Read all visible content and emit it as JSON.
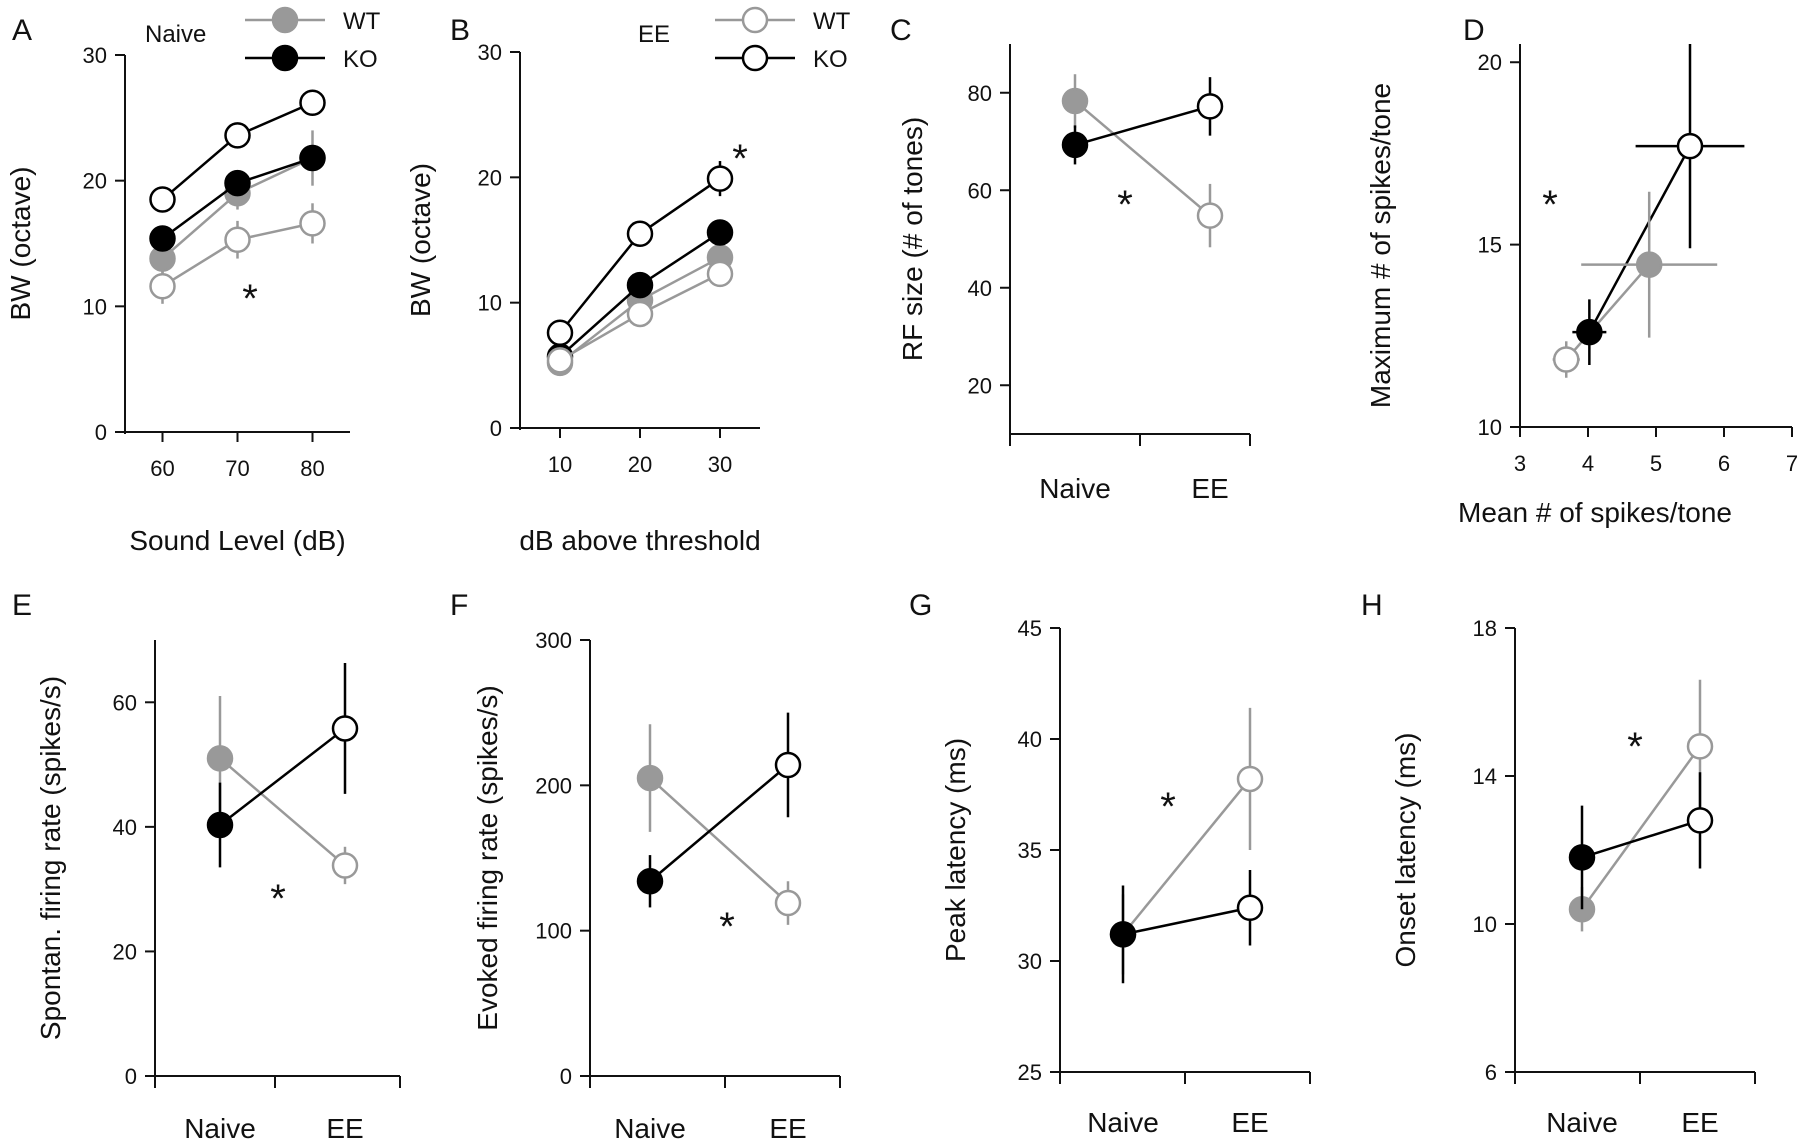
{
  "colors": {
    "wt": "#999999",
    "ko": "#000000",
    "axis": "#111111",
    "background": "#ffffff"
  },
  "chart_data": [
    {
      "panel": "A",
      "type": "line",
      "condition_label": "Naive",
      "legend": [
        {
          "label": "WT",
          "marker": "filled-gray"
        },
        {
          "label": "KO",
          "marker": "filled-black"
        }
      ],
      "xlabel": "Sound Level (dB)",
      "ylabel": "BW (octave)",
      "x": [
        60,
        70,
        80
      ],
      "xticks": [
        "60",
        "70",
        "80"
      ],
      "ylim": [
        0,
        30
      ],
      "yticks": [
        "0",
        "10",
        "20",
        "30"
      ],
      "annotation": "*",
      "series": [
        {
          "group": "Naive WT",
          "values": [
            13.8,
            19.0,
            21.8
          ],
          "err": [
            1.2,
            1.3,
            2.2
          ],
          "style": "filled-gray"
        },
        {
          "group": "Naive KO",
          "values": [
            15.4,
            19.8,
            21.8
          ],
          "err": [
            0.8,
            0.9,
            1.0
          ],
          "style": "filled-black"
        },
        {
          "group": "EE WT",
          "values": [
            11.6,
            15.3,
            16.6
          ],
          "err": [
            1.4,
            1.5,
            1.6
          ],
          "style": "open-gray"
        },
        {
          "group": "EE KO",
          "values": [
            18.5,
            23.6,
            26.2
          ],
          "err": [
            0.4,
            0.4,
            0.5
          ],
          "style": "open-black"
        }
      ]
    },
    {
      "panel": "B",
      "type": "line",
      "condition_label": "EE",
      "legend": [
        {
          "label": "WT",
          "marker": "open-gray"
        },
        {
          "label": "KO",
          "marker": "open-black"
        }
      ],
      "xlabel": "dB above threshold",
      "ylabel": "BW (octave)",
      "x": [
        10,
        20,
        30
      ],
      "xticks": [
        "10",
        "20",
        "30"
      ],
      "ylim": [
        0,
        30
      ],
      "yticks": [
        "0",
        "10",
        "20",
        "30"
      ],
      "annotation": "*",
      "series": [
        {
          "group": "Naive WT",
          "values": [
            5.2,
            10.2,
            13.6
          ],
          "err": [
            0.4,
            0.8,
            1.0
          ],
          "style": "filled-gray"
        },
        {
          "group": "Naive KO",
          "values": [
            5.7,
            11.4,
            15.6
          ],
          "err": [
            0.4,
            0.6,
            0.8
          ],
          "style": "filled-black"
        },
        {
          "group": "EE WT",
          "values": [
            5.4,
            9.1,
            12.3
          ],
          "err": [
            0.4,
            0.5,
            0.8
          ],
          "style": "open-gray"
        },
        {
          "group": "EE KO",
          "values": [
            7.6,
            15.5,
            19.9
          ],
          "err": [
            0.5,
            0.7,
            1.4
          ],
          "style": "open-black"
        }
      ]
    },
    {
      "panel": "C",
      "type": "line",
      "ylabel": "RF size (# of tones)",
      "categories": [
        "Naive",
        "EE"
      ],
      "ylim": [
        10,
        90
      ],
      "yticks": [
        "20",
        "40",
        "60",
        "80"
      ],
      "annotation": "*",
      "series": [
        {
          "genotype": "WT",
          "values": [
            78.3,
            54.8
          ],
          "err": [
            5.5,
            6.5
          ]
        },
        {
          "genotype": "KO",
          "values": [
            69.3,
            77.2
          ],
          "err": [
            4.0,
            6.0
          ]
        }
      ]
    },
    {
      "panel": "D",
      "type": "scatter",
      "xlabel": "Mean # of spikes/tone",
      "ylabel": "Maximum # of spikes/tone",
      "xlim": [
        3,
        7
      ],
      "ylim": [
        10,
        20.5
      ],
      "xticks": [
        "3",
        "4",
        "5",
        "6",
        "7"
      ],
      "yticks": [
        "10",
        "15",
        "20"
      ],
      "annotation": "*",
      "points": [
        {
          "group": "Naive WT",
          "x": 4.9,
          "y": 14.45,
          "xerr": 1.0,
          "yerr": 2.0,
          "style": "filled-gray"
        },
        {
          "group": "Naive KO",
          "x": 4.02,
          "y": 12.6,
          "xerr": 0.25,
          "yerr": 0.9,
          "style": "filled-black"
        },
        {
          "group": "EE WT",
          "x": 3.68,
          "y": 11.85,
          "xerr": 0.2,
          "yerr": 0.5,
          "style": "open-gray"
        },
        {
          "group": "EE KO",
          "x": 5.5,
          "y": 17.7,
          "xerr": 0.8,
          "yerr": 2.8,
          "style": "open-black"
        }
      ]
    },
    {
      "panel": "E",
      "type": "line",
      "ylabel": "Spontan. firing rate (spikes/s)",
      "categories": [
        "Naive",
        "EE"
      ],
      "ylim": [
        0,
        70
      ],
      "yticks": [
        "0",
        "20",
        "40",
        "60"
      ],
      "annotation": "*",
      "series": [
        {
          "genotype": "WT",
          "values": [
            51.0,
            33.8
          ],
          "err": [
            10.0,
            3.0
          ]
        },
        {
          "genotype": "KO",
          "values": [
            40.3,
            55.8
          ],
          "err": [
            6.8,
            10.5
          ]
        }
      ]
    },
    {
      "panel": "F",
      "type": "line",
      "ylabel": "Evoked firing rate (spikes/s)",
      "categories": [
        "Naive",
        "EE"
      ],
      "ylim": [
        0,
        300
      ],
      "yticks": [
        "0",
        "100",
        "200",
        "300"
      ],
      "annotation": "*",
      "series": [
        {
          "genotype": "WT",
          "values": [
            205,
            119
          ],
          "err": [
            37,
            15
          ]
        },
        {
          "genotype": "KO",
          "values": [
            134,
            214
          ],
          "err": [
            18,
            36
          ]
        }
      ]
    },
    {
      "panel": "G",
      "type": "line",
      "ylabel": "Peak latency (ms)",
      "categories": [
        "Naive",
        "EE"
      ],
      "ylim": [
        25,
        45
      ],
      "yticks": [
        "25",
        "30",
        "35",
        "40",
        "45"
      ],
      "annotation": "*",
      "series": [
        {
          "genotype": "WT",
          "values": [
            31.2,
            38.2
          ],
          "err": [
            1.8,
            3.2
          ]
        },
        {
          "genotype": "KO",
          "values": [
            31.2,
            32.4
          ],
          "err": [
            2.2,
            1.7
          ]
        }
      ]
    },
    {
      "panel": "H",
      "type": "line",
      "ylabel": "Onset latency (ms)",
      "categories": [
        "Naive",
        "EE"
      ],
      "ylim": [
        6,
        18
      ],
      "yticks": [
        "6",
        "10",
        "14",
        "18"
      ],
      "annotation": "*",
      "series": [
        {
          "genotype": "WT",
          "values": [
            10.4,
            14.8
          ],
          "err": [
            0.6,
            1.8
          ]
        },
        {
          "genotype": "KO",
          "values": [
            11.8,
            12.8
          ],
          "err": [
            1.4,
            1.3
          ]
        }
      ]
    }
  ]
}
